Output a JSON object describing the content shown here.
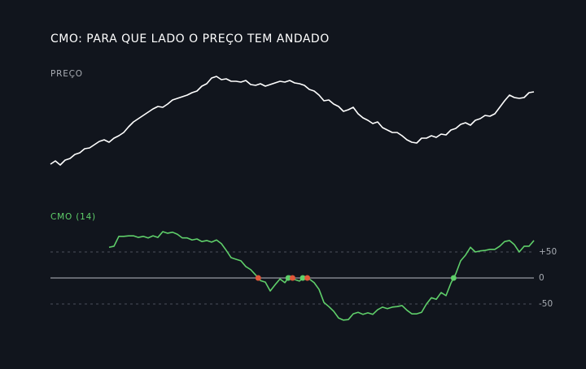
{
  "chart_data": [
    {
      "type": "line",
      "title": "CMO: PARA QUE LADO O PREÇO TEM ANDADO",
      "label": "PREÇO",
      "color": "#ffffff",
      "ylim": [
        40,
        160
      ],
      "values": [
        48,
        52,
        47,
        53,
        55,
        60,
        62,
        67,
        68,
        72,
        76,
        78,
        75,
        80,
        83,
        87,
        94,
        100,
        104,
        108,
        112,
        116,
        119,
        118,
        122,
        127,
        129,
        131,
        133,
        136,
        138,
        144,
        147,
        154,
        156,
        152,
        153,
        150,
        150,
        149,
        151,
        146,
        145,
        147,
        144,
        146,
        148,
        150,
        149,
        151,
        148,
        147,
        145,
        140,
        138,
        133,
        126,
        127,
        122,
        119,
        113,
        115,
        118,
        110,
        105,
        102,
        98,
        100,
        93,
        90,
        87,
        87,
        83,
        78,
        75,
        74,
        80,
        80,
        83,
        81,
        85,
        84,
        90,
        92,
        97,
        99,
        96,
        102,
        104,
        108,
        107,
        110,
        118,
        126,
        133,
        130,
        129,
        130,
        136,
        137
      ]
    },
    {
      "type": "line",
      "label": "CMO (14)",
      "color": "#5fcf6a",
      "cross_up_color": "#5fcf6a",
      "cross_down_color": "#e0583a",
      "ylim": [
        -100,
        100
      ],
      "yticks": [
        {
          "value": 50,
          "label": "+50"
        },
        0,
        {
          "value": -50,
          "label": "-50"
        }
      ],
      "values": [
        null,
        null,
        null,
        null,
        null,
        null,
        null,
        null,
        null,
        null,
        null,
        null,
        59,
        61,
        80,
        80,
        81,
        81,
        78,
        80,
        77,
        81,
        78,
        89,
        86,
        88,
        84,
        77,
        77,
        73,
        75,
        70,
        72,
        69,
        73,
        66,
        53,
        39,
        36,
        33,
        22,
        16,
        6,
        -5,
        -8,
        -25,
        -13,
        -2,
        -9,
        4,
        -3,
        -6,
        3,
        -2,
        -9,
        -22,
        -47,
        -55,
        -64,
        -77,
        -81,
        -80,
        -69,
        -66,
        -70,
        -67,
        -70,
        -61,
        -56,
        -59,
        -56,
        -55,
        -53,
        -62,
        -69,
        -69,
        -66,
        -50,
        -38,
        -41,
        -28,
        -34,
        -10,
        8,
        33,
        44,
        59,
        50,
        52,
        53,
        55,
        55,
        61,
        70,
        72,
        64,
        50,
        61,
        61,
        72
      ]
    }
  ]
}
